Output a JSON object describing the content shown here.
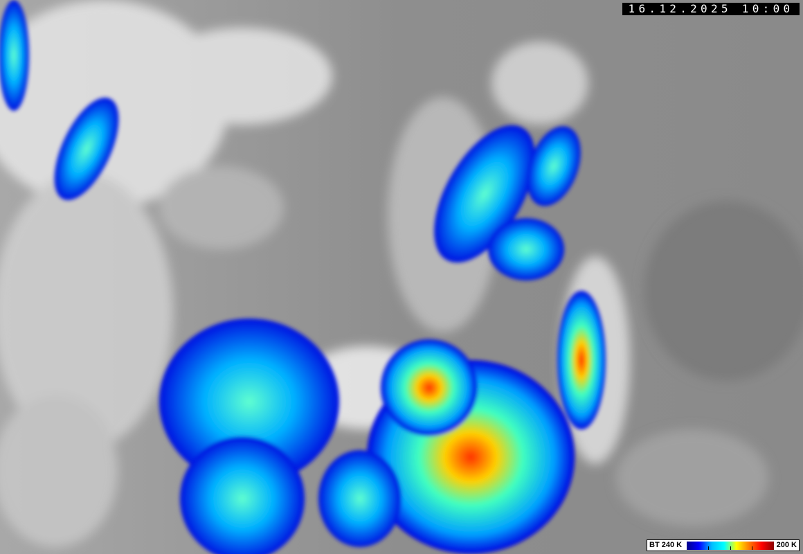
{
  "timestamp": "16.12.2025 10:00",
  "legend": {
    "label_low": "BT 240 K",
    "label_high": "200 K",
    "colors": [
      "#00008b",
      "#0000ff",
      "#00bfff",
      "#00ffff",
      "#ffff00",
      "#ff8000",
      "#ff0000",
      "#8b0000"
    ]
  }
}
